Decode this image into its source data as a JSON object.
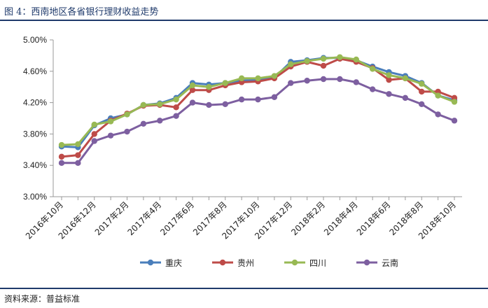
{
  "caption": "图 4：西南地区各省银行理财收益走势",
  "source": "资料来源：普益标准",
  "colors": {
    "chongqing": "#4a7ebb",
    "guizhou": "#be4b48",
    "sichuan": "#98b954",
    "yunnan": "#7d5fa0",
    "rule": "#1f3a6b",
    "axis": "#999999"
  },
  "chart_data": {
    "type": "line",
    "title": "",
    "xlabel": "",
    "ylabel": "",
    "ylim": [
      3.0,
      5.0
    ],
    "yticks": [
      "3.00%",
      "3.40%",
      "3.80%",
      "4.20%",
      "4.60%",
      "5.00%"
    ],
    "yticks_values": [
      3.0,
      3.4,
      3.8,
      4.2,
      4.6,
      5.0
    ],
    "grid": false,
    "legend": "bottom",
    "x": [
      "2016年10月",
      "2016年11月",
      "2016年12月",
      "2017年1月",
      "2017年2月",
      "2017年3月",
      "2017年4月",
      "2017年5月",
      "2017年6月",
      "2017年7月",
      "2017年8月",
      "2017年9月",
      "2017年10月",
      "2017年11月",
      "2017年12月",
      "2018年1月",
      "2018年2月",
      "2018年3月",
      "2018年4月",
      "2018年5月",
      "2018年6月",
      "2018年7月",
      "2018年8月",
      "2018年9月",
      "2018年10月"
    ],
    "xticks_shown": [
      "2016年10月",
      "2016年12月",
      "2017年2月",
      "2017年4月",
      "2017年6月",
      "2017年8月",
      "2017年10月",
      "2017年12月",
      "2018年2月",
      "2018年4月",
      "2018年6月",
      "2018年8月",
      "2018年10月"
    ],
    "series": [
      {
        "name": "重庆",
        "values": [
          3.64,
          3.63,
          3.91,
          4.0,
          4.05,
          4.17,
          4.19,
          4.26,
          4.45,
          4.43,
          4.45,
          4.48,
          4.49,
          4.52,
          4.72,
          4.74,
          4.77,
          4.77,
          4.74,
          4.66,
          4.59,
          4.54,
          4.45,
          4.29,
          4.23
        ]
      },
      {
        "name": "贵州",
        "values": [
          3.51,
          3.53,
          3.8,
          3.97,
          4.06,
          4.16,
          4.17,
          4.14,
          4.36,
          4.36,
          4.42,
          4.46,
          4.47,
          4.51,
          4.66,
          4.72,
          4.67,
          4.76,
          4.72,
          4.64,
          4.49,
          4.51,
          4.34,
          4.34,
          4.26
        ]
      },
      {
        "name": "四川",
        "values": [
          3.66,
          3.67,
          3.92,
          3.96,
          4.05,
          4.17,
          4.18,
          4.24,
          4.42,
          4.4,
          4.45,
          4.51,
          4.51,
          4.54,
          4.69,
          4.73,
          4.76,
          4.78,
          4.75,
          4.63,
          4.55,
          4.51,
          4.44,
          4.29,
          4.21
        ]
      },
      {
        "name": "云南",
        "values": [
          3.43,
          3.43,
          3.71,
          3.78,
          3.83,
          3.93,
          3.97,
          4.03,
          4.2,
          4.17,
          4.18,
          4.24,
          4.24,
          4.27,
          4.45,
          4.48,
          4.5,
          4.5,
          4.46,
          4.37,
          4.31,
          4.26,
          4.18,
          4.05,
          3.97
        ]
      }
    ]
  }
}
